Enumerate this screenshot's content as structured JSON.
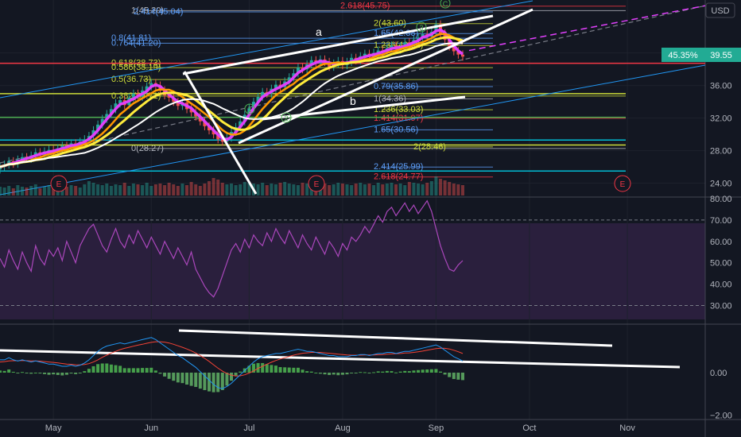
{
  "currency": "USD",
  "colors": {
    "bg": "#131722",
    "up": "#26a69a",
    "down": "#ef5350",
    "rsi": "#ab47bc",
    "rsi_band": "#2a1f3d",
    "macd": "#2196f3",
    "signal": "#f44336",
    "hist_up": "#4caf50",
    "hist_down": "#66bb6a",
    "fib_gold": "#cddc39",
    "fib_red": "#f23645",
    "fib_blue": "#5b9cf6",
    "fib_green": "#4caf50",
    "fib_cyan": "#00bcd4",
    "channel": "#2196f3",
    "ma_yellow": "#ffeb3b",
    "ma_orange": "#ff9800",
    "ma_purple": "#e040fb",
    "price_tag": "#22ab94"
  },
  "price_tag": {
    "pct": "45.35%",
    "price": "39.55",
    "value": 39.55
  },
  "chart_data": [
    {
      "type": "candlestick",
      "name": "price",
      "ylim": [
        22.5,
        46.5
      ],
      "y_ticks": [
        24,
        28,
        32,
        36,
        40
      ],
      "y_tick_labels": [
        "24.00",
        "28.00",
        "32.00",
        "36.00",
        "40.00"
      ],
      "x_tick_labels": [
        "May",
        "Jun",
        "Jul",
        "Aug",
        "Sep",
        "Oct",
        "Nov"
      ],
      "x_tick_index": [
        12,
        34,
        56,
        77,
        98,
        119,
        141
      ],
      "closes": [
        26.0,
        26.3,
        26.7,
        26.4,
        26.9,
        27.2,
        27.0,
        27.4,
        27.8,
        27.5,
        27.9,
        28.1,
        27.9,
        28.3,
        28.6,
        28.4,
        28.9,
        28.7,
        29.1,
        29.4,
        29.8,
        30.5,
        31.2,
        31.9,
        32.5,
        33.1,
        33.8,
        34.2,
        33.6,
        34.5,
        35.0,
        34.6,
        35.4,
        35.9,
        36.3,
        36.0,
        35.4,
        34.8,
        34.5,
        34.0,
        33.5,
        33.9,
        33.1,
        32.7,
        32.2,
        31.6,
        31.0,
        30.5,
        30.0,
        29.4,
        29.1,
        29.6,
        30.3,
        30.9,
        31.6,
        32.4,
        33.2,
        34.0,
        34.6,
        35.2,
        35.0,
        35.6,
        36.1,
        35.8,
        36.5,
        37.0,
        37.5,
        38.2,
        38.0,
        38.6,
        39.1,
        38.7,
        39.2,
        38.9,
        38.3,
        38.7,
        39.0,
        38.5,
        38.9,
        39.4,
        39.1,
        39.6,
        39.9,
        39.5,
        40.0,
        40.3,
        40.1,
        40.6,
        40.9,
        40.4,
        40.8,
        41.3,
        41.0,
        41.6,
        41.9,
        42.3,
        42.0,
        42.6,
        43.5,
        42.4,
        41.6,
        40.8,
        40.2,
        39.8,
        39.55
      ],
      "legend": "",
      "volume_ylim": [
        0,
        40
      ],
      "volume": [
        11,
        10,
        12,
        9,
        13,
        11,
        10,
        12,
        14,
        9,
        11,
        13,
        10,
        12,
        15,
        11,
        13,
        12,
        10,
        14,
        18,
        16,
        14,
        13,
        15,
        12,
        14,
        13,
        16,
        12,
        15,
        14,
        13,
        16,
        12,
        14,
        15,
        13,
        16,
        14,
        12,
        15,
        13,
        17,
        14,
        12,
        15,
        18,
        22,
        20,
        16,
        14,
        15,
        13,
        14,
        17,
        16,
        15,
        14,
        16,
        13,
        15,
        14,
        16,
        17,
        15,
        14,
        13,
        16,
        15,
        14,
        16,
        12,
        15,
        13,
        14,
        16,
        15,
        14,
        13,
        15,
        16,
        14,
        15,
        13,
        16,
        14,
        15,
        16,
        14,
        15,
        13,
        17,
        16,
        15,
        14,
        16,
        18,
        24,
        21,
        19,
        17,
        15,
        14,
        13
      ]
    },
    {
      "type": "line",
      "name": "RSI",
      "ylim": [
        22,
        80
      ],
      "y_ticks": [
        30,
        40,
        50,
        60,
        70,
        80
      ],
      "y_tick_labels": [
        "30.00",
        "40.00",
        "50.00",
        "60.00",
        "70.00",
        "80.00"
      ],
      "values": [
        52,
        48,
        56,
        51,
        47,
        55,
        50,
        46,
        58,
        52,
        49,
        56,
        53,
        57,
        51,
        60,
        55,
        50,
        58,
        62,
        66,
        68,
        63,
        58,
        55,
        61,
        66,
        60,
        57,
        63,
        59,
        65,
        61,
        57,
        62,
        58,
        54,
        60,
        56,
        52,
        57,
        53,
        49,
        55,
        47,
        43,
        39,
        36,
        34,
        38,
        44,
        50,
        56,
        59,
        55,
        61,
        57,
        63,
        60,
        58,
        64,
        60,
        66,
        62,
        59,
        65,
        61,
        57,
        63,
        59,
        56,
        62,
        58,
        54,
        60,
        57,
        53,
        59,
        56,
        62,
        60,
        63,
        67,
        64,
        68,
        72,
        69,
        74,
        76,
        72,
        75,
        78,
        74,
        77,
        73,
        76,
        79,
        74,
        66,
        58,
        52,
        47,
        46,
        49,
        51
      ]
    },
    {
      "type": "macd",
      "name": "MACD",
      "ylim": [
        -2.2,
        2.2
      ],
      "y_ticks": [
        0,
        -2
      ],
      "y_tick_labels": [
        "0.00",
        "−2.00"
      ],
      "macd": [
        0.6,
        0.6,
        0.7,
        0.6,
        0.55,
        0.6,
        0.55,
        0.5,
        0.55,
        0.5,
        0.45,
        0.4,
        0.4,
        0.35,
        0.3,
        0.3,
        0.35,
        0.3,
        0.35,
        0.45,
        0.6,
        0.8,
        1.0,
        1.15,
        1.25,
        1.3,
        1.35,
        1.4,
        1.35,
        1.4,
        1.45,
        1.5,
        1.55,
        1.6,
        1.65,
        1.55,
        1.4,
        1.25,
        1.1,
        0.95,
        0.8,
        0.7,
        0.55,
        0.4,
        0.25,
        0.05,
        -0.15,
        -0.35,
        -0.55,
        -0.7,
        -0.75,
        -0.65,
        -0.5,
        -0.3,
        -0.1,
        0.1,
        0.3,
        0.5,
        0.65,
        0.75,
        0.8,
        0.85,
        0.9,
        0.9,
        0.95,
        1.0,
        1.05,
        1.1,
        1.05,
        1.0,
        1.0,
        0.95,
        0.9,
        0.85,
        0.8,
        0.8,
        0.75,
        0.75,
        0.75,
        0.8,
        0.8,
        0.85,
        0.85,
        0.8,
        0.85,
        0.9,
        0.9,
        0.95,
        0.95,
        0.9,
        0.95,
        1.0,
        1.0,
        1.05,
        1.1,
        1.15,
        1.2,
        1.25,
        1.3,
        1.2,
        1.05,
        0.9,
        0.75,
        0.65,
        0.55
      ],
      "signal": [
        0.5,
        0.52,
        0.55,
        0.56,
        0.56,
        0.57,
        0.56,
        0.55,
        0.55,
        0.54,
        0.52,
        0.5,
        0.48,
        0.46,
        0.43,
        0.4,
        0.39,
        0.37,
        0.36,
        0.38,
        0.42,
        0.5,
        0.6,
        0.72,
        0.82,
        0.92,
        1.0,
        1.08,
        1.14,
        1.19,
        1.24,
        1.29,
        1.33,
        1.38,
        1.42,
        1.45,
        1.45,
        1.43,
        1.39,
        1.33,
        1.26,
        1.19,
        1.11,
        1.02,
        0.92,
        0.8,
        0.67,
        0.53,
        0.37,
        0.21,
        0.07,
        -0.04,
        -0.12,
        -0.16,
        -0.15,
        -0.1,
        -0.02,
        0.08,
        0.2,
        0.3,
        0.4,
        0.49,
        0.57,
        0.64,
        0.7,
        0.76,
        0.82,
        0.87,
        0.91,
        0.93,
        0.95,
        0.95,
        0.95,
        0.93,
        0.91,
        0.89,
        0.87,
        0.85,
        0.83,
        0.82,
        0.82,
        0.82,
        0.83,
        0.83,
        0.83,
        0.84,
        0.85,
        0.87,
        0.88,
        0.89,
        0.9,
        0.92,
        0.93,
        0.95,
        0.98,
        1.01,
        1.05,
        1.09,
        1.13,
        1.15,
        1.14,
        1.11,
        1.05,
        0.98,
        0.9
      ]
    }
  ],
  "fib_labels": [
    {
      "text": "1(45.20)",
      "price": 45.2,
      "color": "#b2b5be"
    },
    {
      "text": "2.618(45.75)",
      "price": 45.75,
      "color": "#f23645"
    },
    {
      "text": "2.414(45.04)",
      "price": 45.04,
      "color": "#5b9cf6"
    },
    {
      "text": "2(43.60)",
      "price": 43.6,
      "color": "#cddc39"
    },
    {
      "text": "0.8(41.81)",
      "price": 41.81,
      "color": "#5b9cf6"
    },
    {
      "text": "0.764(41.20)",
      "price": 41.2,
      "color": "#5b9cf6"
    },
    {
      "text": "1.65(42.38)",
      "price": 42.38,
      "color": "#5b9cf6"
    },
    {
      "text": "1.236(40.92)",
      "price": 40.92,
      "color": "#cddc39"
    },
    {
      "text": "0.618(38.73)",
      "price": 38.73,
      "color": "#cddc39"
    },
    {
      "text": "0.586(38.19)",
      "price": 38.19,
      "color": "#cddc39"
    },
    {
      "text": "0.5(36.73)",
      "price": 36.73,
      "color": "#cddc39"
    },
    {
      "text": "0.382(34.71)",
      "price": 34.71,
      "color": "#cddc39"
    },
    {
      "text": "0(28.27)",
      "price": 28.27,
      "color": "#b2b5be"
    },
    {
      "text": "1(34.36)",
      "price": 34.36,
      "color": "#b2b5be"
    },
    {
      "text": "1.236(33.03)",
      "price": 33.03,
      "color": "#cddc39"
    },
    {
      "text": "1.414(31.97)",
      "price": 31.97,
      "color": "#f23645"
    },
    {
      "text": "1.65(30.56)",
      "price": 30.56,
      "color": "#5b9cf6"
    },
    {
      "text": "2(28.46)",
      "price": 28.46,
      "color": "#cddc39"
    },
    {
      "text": "2.414(25.99)",
      "price": 25.99,
      "color": "#5b9cf6"
    },
    {
      "text": "2.618(24.77)",
      "price": 24.77,
      "color": "#f23645"
    },
    {
      "text": "0.79(35.86)",
      "price": 35.86,
      "color": "#5b9cf6"
    }
  ],
  "wave_labels": [
    "a",
    "b",
    "1",
    "2",
    "3",
    "C"
  ],
  "earnings_label": "E"
}
